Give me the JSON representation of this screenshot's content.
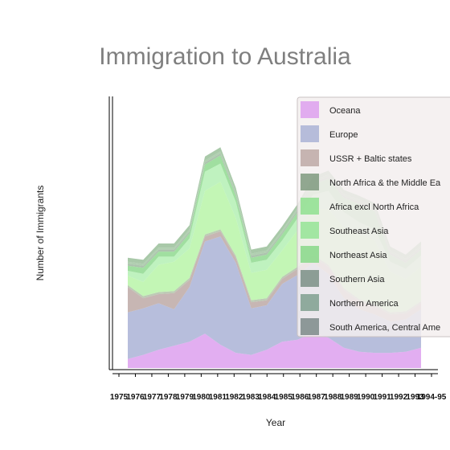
{
  "chart_data": {
    "type": "area",
    "stacked": true,
    "title": "Immigration to Australia",
    "xlabel": "Year",
    "ylabel": "Number of Immigrants",
    "categories": [
      "1975",
      "1976",
      "1977",
      "1978",
      "1979",
      "1980",
      "1981",
      "1982",
      "1983",
      "1984",
      "1985",
      "1986",
      "1987",
      "1988",
      "1989",
      "1990",
      "1991",
      "1992",
      "1993",
      "1994-95"
    ],
    "legend_position": "top-right",
    "grid": false,
    "series": [
      {
        "name": "Oceana",
        "color": "#dda0ee",
        "values": [
          9,
          13,
          18,
          22,
          26,
          34,
          23,
          15,
          13,
          18,
          26,
          28,
          35,
          30,
          20,
          16,
          15,
          15,
          16,
          20
        ]
      },
      {
        "name": "Europe",
        "color": "#aab3d6",
        "values": [
          46,
          46,
          46,
          36,
          54,
          91,
          107,
          89,
          46,
          44,
          57,
          64,
          69,
          63,
          49,
          42,
          38,
          31,
          32,
          38
        ]
      },
      {
        "name": "USSR + Baltic states",
        "color": "#bda9a6",
        "values": [
          25,
          10,
          9,
          16,
          7,
          5,
          5,
          5,
          6,
          5,
          5,
          6,
          6,
          7,
          8,
          8,
          8,
          7,
          6,
          6
        ]
      },
      {
        "name": "North Africa & the Middle East",
        "color": "#b2c2a8",
        "values": [
          2,
          2,
          2,
          2,
          2,
          2,
          2,
          2,
          2,
          2,
          2,
          2,
          2,
          2,
          2,
          2,
          2,
          2,
          2,
          2
        ]
      },
      {
        "name": "Africa excl North Africa",
        "color": "#b8f5a8",
        "values": [
          9,
          14,
          27,
          29,
          29,
          43,
          47,
          37,
          27,
          28,
          26,
          36,
          45,
          55,
          60,
          64,
          63,
          40,
          32,
          34
        ]
      },
      {
        "name": "Southeast Asia",
        "color": "#b4f0b4",
        "values": [
          5,
          8,
          8,
          5,
          10,
          19,
          18,
          16,
          10,
          10,
          10,
          12,
          14,
          18,
          15,
          12,
          11,
          10,
          10,
          11
        ]
      },
      {
        "name": "Northeast Asia",
        "color": "#8fd98f",
        "values": [
          5,
          6,
          5,
          5,
          5,
          7,
          8,
          6,
          5,
          5,
          6,
          6,
          10,
          12,
          14,
          18,
          18,
          7,
          6,
          6
        ]
      },
      {
        "name": "Southern Asia",
        "color": "#9fb8a0",
        "values": [
          2,
          2,
          2,
          2,
          2,
          2,
          2,
          2,
          2,
          2,
          2,
          2,
          2,
          2,
          2,
          2,
          2,
          2,
          2,
          2
        ]
      },
      {
        "name": "Northern America",
        "color": "#a3c7a3",
        "values": [
          2,
          2,
          2,
          2,
          2,
          2,
          2,
          2,
          2,
          2,
          2,
          2,
          2,
          2,
          2,
          2,
          2,
          2,
          2,
          2
        ]
      },
      {
        "name": "South America, Central America, and the Caribbean",
        "color": "#9abf9a",
        "values": [
          4,
          4,
          4,
          4,
          4,
          4,
          4,
          4,
          4,
          4,
          4,
          4,
          4,
          4,
          4,
          4,
          4,
          4,
          4,
          4
        ]
      }
    ],
    "legend": [
      {
        "label": "Oceana",
        "color": "#dda0ee"
      },
      {
        "label": "Europe",
        "color": "#aab3d6"
      },
      {
        "label": "USSR + Baltic states",
        "color": "#bda9a6"
      },
      {
        "label": "North Africa & the Middle Ea",
        "color": "#7f9a7f"
      },
      {
        "label": "Africa excl North Africa",
        "color": "#8fe08f"
      },
      {
        "label": "Southeast Asia",
        "color": "#95e495"
      },
      {
        "label": "Northeast Asia",
        "color": "#88d888"
      },
      {
        "label": "Southern Asia",
        "color": "#7b8f86"
      },
      {
        "label": "Northern America",
        "color": "#7f9f8f"
      },
      {
        "label": "South America, Central Ame",
        "color": "#7d8a8a"
      }
    ]
  }
}
